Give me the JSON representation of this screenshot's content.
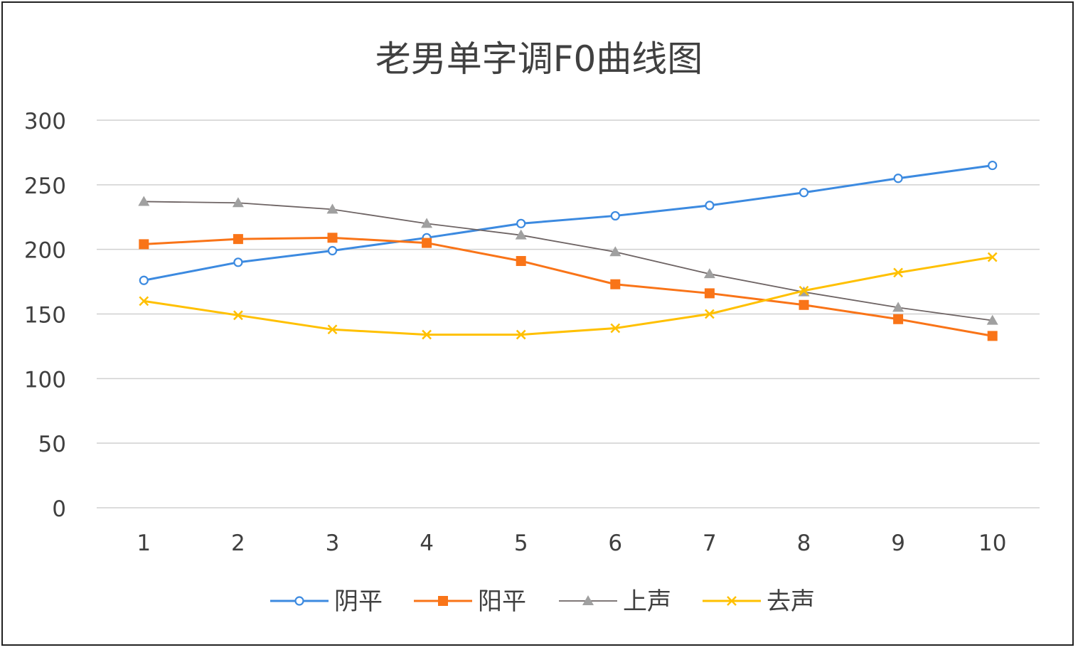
{
  "chart_data": {
    "type": "line",
    "title": "老男单字调F0曲线图",
    "xlabel": "",
    "ylabel": "",
    "categories": [
      "1",
      "2",
      "3",
      "4",
      "5",
      "6",
      "7",
      "8",
      "9",
      "10"
    ],
    "ylim": [
      0,
      300
    ],
    "yticks": [
      "0",
      "50",
      "100",
      "150",
      "200",
      "250",
      "300"
    ],
    "grid": true,
    "legend_position": "bottom",
    "series": [
      {
        "name": "阴平",
        "color": "#3c8ae0",
        "marker": "circle",
        "values": [
          176,
          190,
          199,
          209,
          220,
          226,
          234,
          244,
          255,
          265
        ]
      },
      {
        "name": "阳平",
        "color": "#f97418",
        "marker": "square",
        "values": [
          204,
          208,
          209,
          205,
          191,
          173,
          166,
          157,
          146,
          133
        ]
      },
      {
        "name": "上声",
        "color": "#a0a0a0",
        "line_color": "#6e6464",
        "marker": "triangle",
        "values": [
          237,
          236,
          231,
          220,
          211,
          198,
          181,
          167,
          155,
          145
        ]
      },
      {
        "name": "去声",
        "color": "#ffc000",
        "marker": "x",
        "values": [
          160,
          149,
          138,
          134,
          134,
          139,
          150,
          168,
          182,
          194
        ]
      }
    ]
  }
}
